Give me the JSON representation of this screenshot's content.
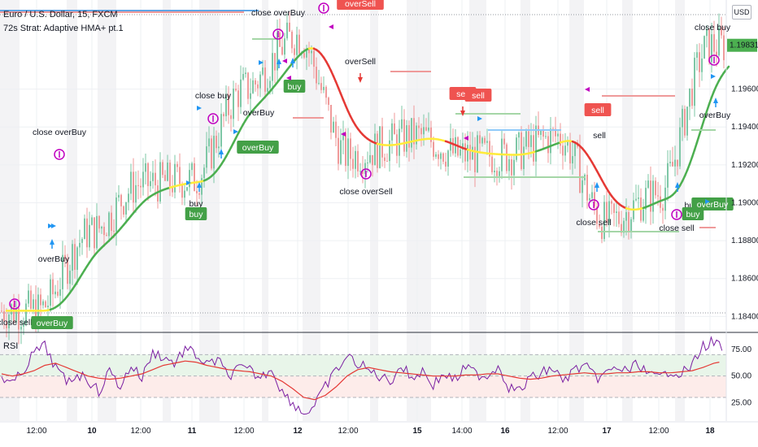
{
  "header": {
    "symbol_title": "Euro / U.S. Dollar, 15, FXCM",
    "strategy_title": "72s Strat: Adaptive HMA+ pt.1",
    "currency_badge": "USD"
  },
  "rsi_panel": {
    "label": "RSI"
  },
  "colors": {
    "grid": "#eef0f3",
    "session_shade": "#f3f3f5",
    "up_candle": "#7ec7a6",
    "down_candle": "#ef9a9a",
    "hma_green": "#4caf50",
    "hma_red": "#e53935",
    "hma_yellow": "#ffeb3b",
    "buy_label": "#43a047",
    "sell_label": "#ef5350",
    "signal_arrow_blue": "#2196f3",
    "signal_arrow_red": "#e53935",
    "close_marker": "#c000c0",
    "rsi_line": "#7b1fa2",
    "rsi_ma": "#e53935",
    "rsi_upper_band": "#e8f5e9",
    "rsi_lower_band": "#fdecea",
    "last_price_badge": "#4caf50"
  },
  "chart_data": [
    {
      "type": "line",
      "title": "Euro / U.S. Dollar, 15, FXCM",
      "series": [
        {
          "name": "",
          "x": [
            "12:00",
            "10",
            "12:00",
            "11",
            "12:00",
            "12",
            "12:00",
            "15",
            "14:00",
            "16",
            "12:00",
            "17",
            "12:00",
            "18"
          ],
          "values": [
            1.1843,
            1.1885,
            1.191,
            1.1912,
            1.196,
            1.1988,
            1.1925,
            1.1935,
            1.1925,
            1.1925,
            1.1935,
            1.189,
            1.1905,
            1.1983
          ]
        }
      ],
      "x_ticks": [
        "12:00",
        "10",
        "12:00",
        "11",
        "12:00",
        "12",
        "12:00",
        "15",
        "14:00",
        "16",
        "12:00",
        "17",
        "12:00",
        "18"
      ],
      "y_ticks": [
        "1.19600",
        "1.19400",
        "1.19200",
        "1.19000",
        "1.18800",
        "1.18600",
        "1.18400"
      ],
      "last_price_label": "1.19831",
      "ylim": [
        1.1832,
        1.2007
      ],
      "annotations": [
        {
          "text": "close sell",
          "x": "09 06:00",
          "y": 1.1838
        },
        {
          "text": "overBuy",
          "x": "09 10:00",
          "y": 1.1838
        },
        {
          "text": "overBuy",
          "x": "09 09:00",
          "y": 1.187
        },
        {
          "text": "close overBuy",
          "x": "09 10:30",
          "y": 1.1928
        },
        {
          "text": "buy",
          "x": "10 18:00",
          "y": 1.1898
        },
        {
          "text": "buy",
          "x": "10 18:00",
          "y": 1.1893
        },
        {
          "text": "close buy",
          "x": "10 20:00",
          "y": 1.1958
        },
        {
          "text": "overBuy",
          "x": "11 07:00",
          "y": 1.1947
        },
        {
          "text": "overBuy",
          "x": "11 07:00",
          "y": 1.193
        },
        {
          "text": "close overBuy",
          "x": "11 15:00",
          "y": 1.2
        },
        {
          "text": "buy",
          "x": "11 16:00",
          "y": 1.1967
        },
        {
          "text": "overSell",
          "x": "12 12:00",
          "y": 1.2005
        },
        {
          "text": "overSell",
          "x": "12 12:00",
          "y": 1.1978
        },
        {
          "text": "close overSell",
          "x": "12 12:00",
          "y": 1.1902
        },
        {
          "text": "sell",
          "x": "15 14:00",
          "y": 1.1957
        },
        {
          "text": "sell",
          "x": "15 16:00",
          "y": 1.1957
        },
        {
          "text": "sell",
          "x": "16 13:00",
          "y": 1.1946
        },
        {
          "text": "sell",
          "x": "16 13:00",
          "y": 1.1936
        },
        {
          "text": "close sell",
          "x": "16 14:00",
          "y": 1.188
        },
        {
          "text": "close sell",
          "x": "17 14:00",
          "y": 1.1877
        },
        {
          "text": "buy",
          "x": "17 15:00",
          "y": 1.1892
        },
        {
          "text": "buy",
          "x": "17 15:00",
          "y": 1.1888
        },
        {
          "text": "overBuy",
          "x": "17 19:00",
          "y": 1.1893
        },
        {
          "text": "overBuy",
          "x": "18 01:00",
          "y": 1.1945
        },
        {
          "text": "close buy",
          "x": "18 01:00",
          "y": 1.1983
        }
      ]
    },
    {
      "type": "line",
      "title": "RSI",
      "series": [
        {
          "name": "",
          "values": [
            50,
            42,
            55,
            72,
            78,
            58,
            44,
            52,
            47,
            35,
            55,
            40,
            60,
            48,
            72,
            68,
            62,
            75,
            70,
            60,
            65,
            50,
            57,
            55,
            48,
            58,
            35,
            25,
            15,
            22,
            40,
            55,
            68,
            62,
            55,
            50,
            45,
            60,
            48,
            55,
            42,
            52,
            46,
            58,
            52,
            50,
            60,
            40,
            36,
            48,
            52,
            58,
            45,
            55,
            60,
            48,
            52,
            58,
            54,
            62,
            50,
            48,
            56,
            52,
            60,
            78,
            82,
            75
          ]
        },
        {
          "name": "",
          "values": [
            52,
            50,
            52,
            55,
            60,
            62,
            58,
            54,
            50,
            48,
            47,
            48,
            50,
            52,
            56,
            60,
            62,
            64,
            63,
            60,
            58,
            56,
            55,
            54,
            52,
            50,
            45,
            38,
            30,
            28,
            32,
            40,
            50,
            56,
            58,
            56,
            54,
            53,
            52,
            51,
            50,
            50,
            50,
            51,
            51,
            52,
            52,
            50,
            48,
            47,
            48,
            50,
            51,
            52,
            53,
            52,
            52,
            53,
            53,
            54,
            54,
            53,
            53,
            54,
            55,
            58,
            62,
            64
          ]
        }
      ],
      "y_ticks": [
        "75.00",
        "50.00",
        "25.00"
      ],
      "ylim": [
        8,
        90
      ],
      "bands": [
        30,
        50,
        70
      ]
    }
  ]
}
